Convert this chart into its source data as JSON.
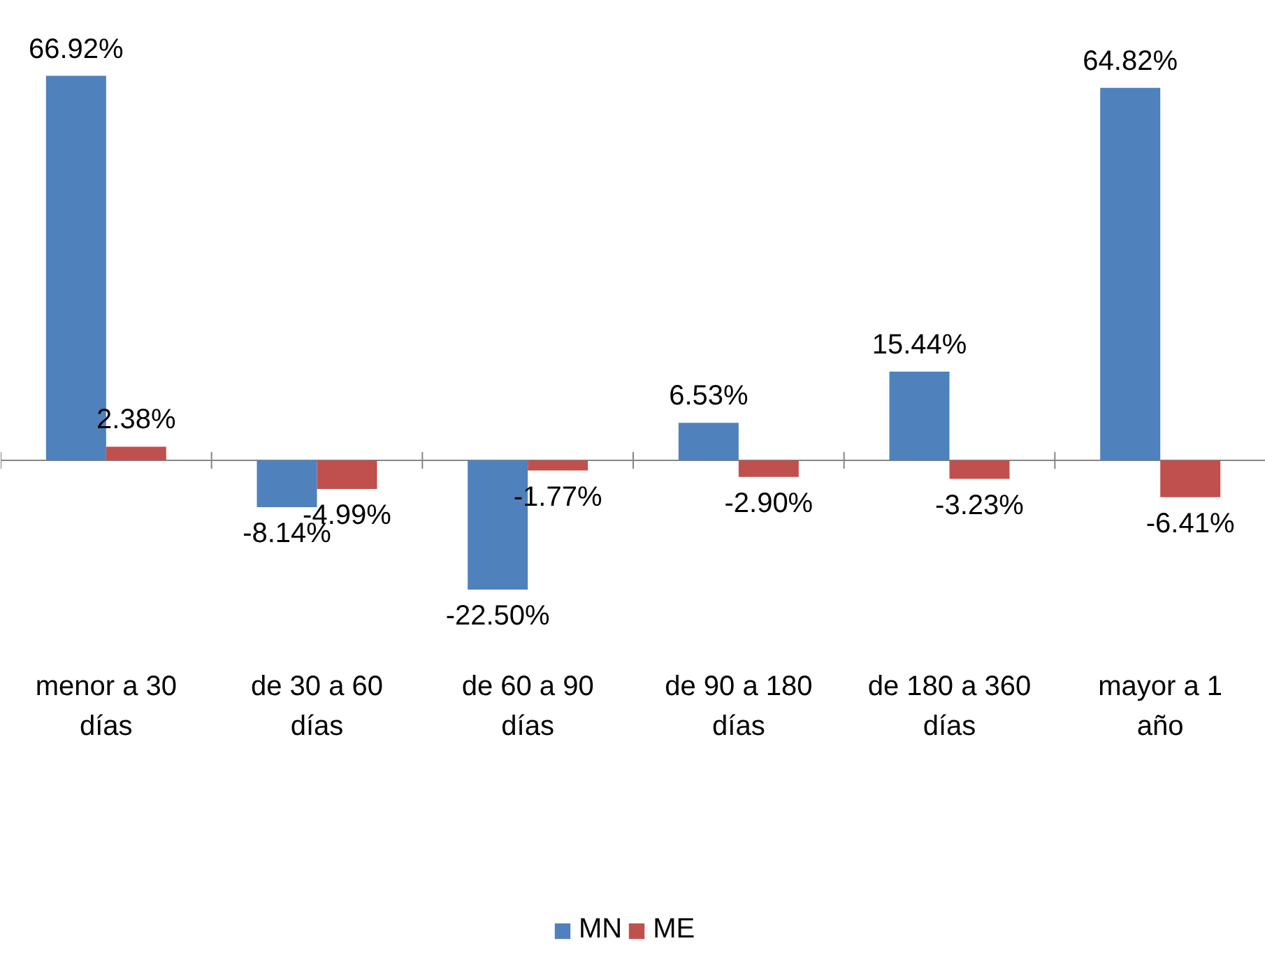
{
  "chart_data": {
    "type": "bar",
    "categories": [
      "menor a 30 días",
      "de 30 a 60 días",
      "de 60 a 90 días",
      "de 90 a 180 días",
      "de 180 a 360 días",
      "mayor a 1 año"
    ],
    "series": [
      {
        "name": "MN",
        "color": "#4f81bd",
        "values": [
          66.92,
          -8.14,
          -22.5,
          6.53,
          15.44,
          64.82
        ],
        "value_labels": [
          "66.92%",
          "-8.14%",
          "-22.50%",
          "6.53%",
          "15.44%",
          "64.82%"
        ]
      },
      {
        "name": "ME",
        "color": "#c0504d",
        "values": [
          2.38,
          -4.99,
          -1.77,
          -2.9,
          -3.23,
          -6.41
        ],
        "value_labels": [
          "2.38%",
          "-4.99%",
          "-1.77%",
          "-2.90%",
          "-3.23%",
          "-6.41%"
        ]
      }
    ],
    "ylim": [
      -89,
      80
    ],
    "legend": "bottom"
  }
}
